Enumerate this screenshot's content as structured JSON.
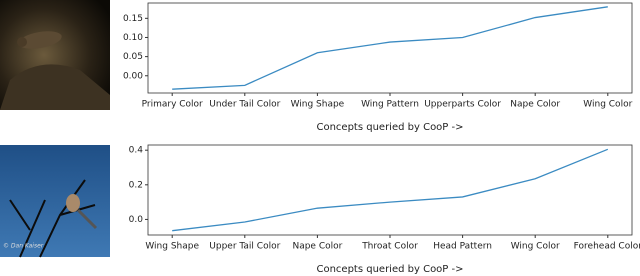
{
  "chart_data": [
    {
      "type": "line",
      "categories": [
        "Primary Color",
        "Under Tail Color",
        "Wing Shape",
        "Wing Pattern",
        "Upperparts Color",
        "Nape Color",
        "Wing Color"
      ],
      "values": [
        -0.035,
        -0.025,
        0.06,
        0.088,
        0.1,
        0.152,
        0.18
      ],
      "color": "#3b8bc2",
      "xlabel": "Concepts queried by CooP ->",
      "ylim": [
        -0.045,
        0.19
      ],
      "yticks": [
        {
          "value": 0,
          "label": "0.00"
        },
        {
          "value": 0.05,
          "label": "0.05"
        },
        {
          "value": 0.1,
          "label": "0.10"
        },
        {
          "value": 0.15,
          "label": "0.15"
        }
      ]
    },
    {
      "type": "line",
      "categories": [
        "Wing Shape",
        "Upper Tail Color",
        "Nape Color",
        "Throat Color",
        "Head Pattern",
        "Wing Color",
        "Forehead Color"
      ],
      "values": [
        -0.065,
        -0.015,
        0.065,
        0.1,
        0.13,
        0.235,
        0.405
      ],
      "color": "#3b8bc2",
      "xlabel": "Concepts queried by CooP ->",
      "ylim": [
        -0.09,
        0.43
      ],
      "yticks": [
        {
          "value": 0,
          "label": "0.0"
        },
        0.2,
        0.4
      ]
    }
  ],
  "images": [
    {},
    {
      "watermark": "© Dan Kaiser"
    }
  ]
}
